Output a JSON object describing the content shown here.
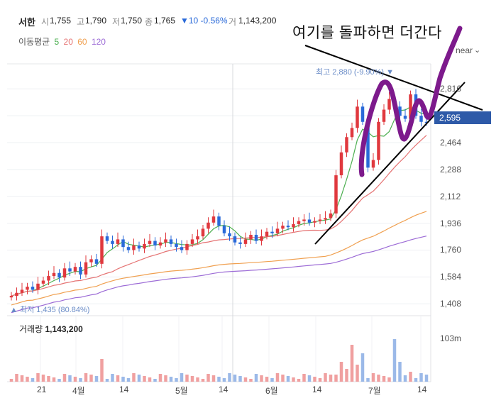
{
  "header": {
    "stock_name": "서한",
    "open_label": "시",
    "open_value": "1,755",
    "high_label": "고",
    "high_value": "1,790",
    "low_label": "저",
    "low_value": "1,750",
    "close_label": "종",
    "close_value": "1,765",
    "change_text": "▼10 -0.56%",
    "volume_label": "거",
    "volume_value": "1,143,200"
  },
  "moving_average": {
    "label": "이동평균",
    "periods": [
      {
        "value": "5",
        "color": "#4caf50"
      },
      {
        "value": "20",
        "color": "#e57373"
      },
      {
        "value": "60",
        "color": "#f0a050"
      },
      {
        "value": "120",
        "color": "#9c6bd6"
      }
    ]
  },
  "scale_toggle": {
    "label": "near",
    "icon": "chevron-down-icon"
  },
  "annotation_text": "여기를 돌파하면 더간다",
  "price_axis": {
    "ticks": [
      "2,816",
      "2,640",
      "2,464",
      "2,288",
      "2,112",
      "1,936",
      "1,760",
      "1,584",
      "1,408"
    ],
    "current_price": "2,595"
  },
  "markers": {
    "max_label": "최고 2,880 (-9.90%)",
    "max_marker": "▼",
    "min_label": "최저 1,435 (80.84%)",
    "min_marker": "▲"
  },
  "volume_panel": {
    "title": "거래량",
    "value": "1,143,200",
    "axis_label": "103m"
  },
  "time_axis": {
    "labels": [
      "21",
      "4월",
      "14",
      "5월",
      "14",
      "6월",
      "14",
      "7월",
      "14"
    ]
  },
  "colors": {
    "up": "#e0383e",
    "down": "#2a6ad9",
    "up_volume": "#f0a0a0",
    "down_volume": "#9bb9e8",
    "current_tag": "#2e5aa8",
    "annotation_ink": "#7d1a8c"
  },
  "chart_data": {
    "type": "candlestick",
    "ylim": [
      1330,
      2980
    ],
    "price_points": [
      1460,
      1480,
      1500,
      1520,
      1500,
      1540,
      1560,
      1590,
      1610,
      1580,
      1640,
      1620,
      1650,
      1600,
      1680,
      1700,
      1670,
      1850,
      1820,
      1800,
      1830,
      1780,
      1760,
      1790,
      1770,
      1800,
      1820,
      1790,
      1810,
      1830,
      1800,
      1780,
      1760,
      1800,
      1830,
      1850,
      1900,
      1940,
      1980,
      1920,
      1870,
      1850,
      1810,
      1800,
      1830,
      1860,
      1820,
      1850,
      1880,
      1870,
      1900,
      1920,
      1910,
      1930,
      1950,
      1960,
      1940,
      1950,
      1960,
      1970,
      2000,
      2250,
      2400,
      2500,
      2560,
      2700,
      2600,
      2300,
      2350,
      2600,
      2680,
      2750,
      2700,
      2640,
      2620,
      2780,
      2640,
      2600,
      2595
    ],
    "volume_max_label": "103m",
    "x_tick_labels": [
      "21",
      "4월",
      "14",
      "5월",
      "14",
      "6월",
      "14",
      "7월",
      "14"
    ]
  }
}
